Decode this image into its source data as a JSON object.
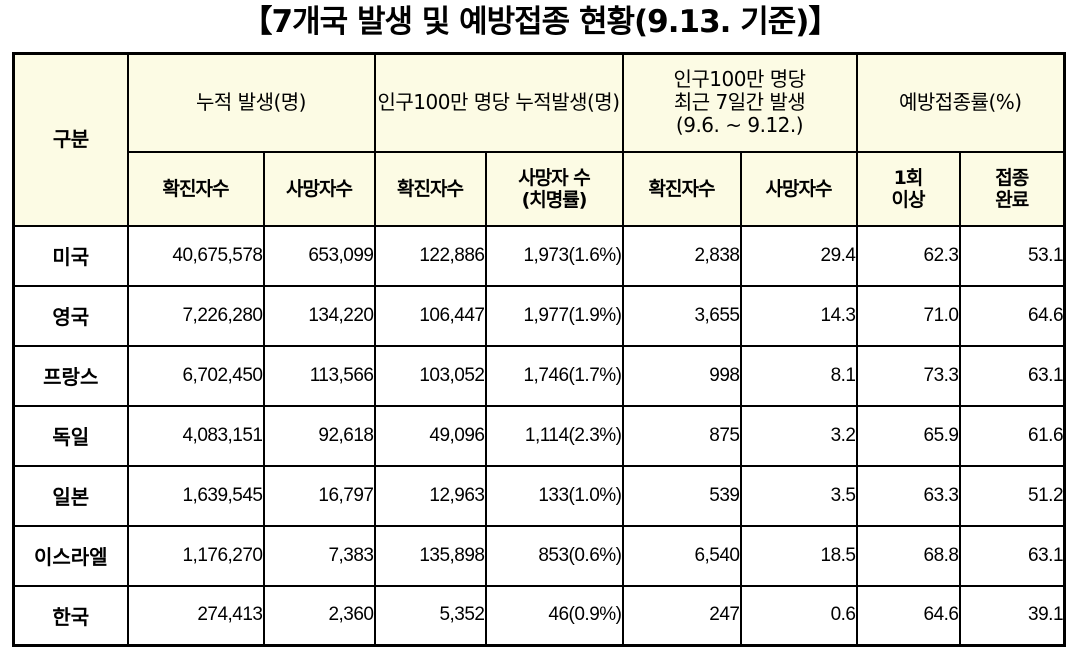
{
  "title": "【7개국 발생 및 예방접종 현황(9.13. 기준)】",
  "header": {
    "category": "구분",
    "groups": [
      "누적 발생(명)",
      "인구100만 명당  누적발생(명)",
      "인구100만 명당\n최근 7일간 발생\n(9.6. ~ 9.12.)",
      "예방접종률(%)"
    ],
    "sub": [
      "확진자수",
      "사망자수",
      "확진자수",
      "사망자 수\n(치명률)",
      "확진자수",
      "사망자수",
      "1회\n이상",
      "접종\n완료"
    ]
  },
  "rows": [
    {
      "country": "미국",
      "values": [
        "40,675,578",
        "653,099",
        "122,886",
        "1,973(1.6%)",
        "2,838",
        "29.4",
        "62.3",
        "53.1"
      ]
    },
    {
      "country": "영국",
      "values": [
        "7,226,280",
        "134,220",
        "106,447",
        "1,977(1.9%)",
        "3,655",
        "14.3",
        "71.0",
        "64.6"
      ]
    },
    {
      "country": "프랑스",
      "values": [
        "6,702,450",
        "113,566",
        "103,052",
        "1,746(1.7%)",
        "998",
        "8.1",
        "73.3",
        "63.1"
      ]
    },
    {
      "country": "독일",
      "values": [
        "4,083,151",
        "92,618",
        "49,096",
        "1,114(2.3%)",
        "875",
        "3.2",
        "65.9",
        "61.6"
      ]
    },
    {
      "country": "일본",
      "values": [
        "1,639,545",
        "16,797",
        "12,963",
        "133(1.0%)",
        "539",
        "3.5",
        "63.3",
        "51.2"
      ]
    },
    {
      "country": "이스라엘",
      "values": [
        "1,176,270",
        "7,383",
        "135,898",
        "853(0.6%)",
        "6,540",
        "18.5",
        "68.8",
        "63.1"
      ]
    },
    {
      "country": "한국",
      "values": [
        "274,413",
        "2,360",
        "5,352",
        "46(0.9%)",
        "247",
        "0.6",
        "64.6",
        "39.1"
      ]
    }
  ],
  "colors": {
    "header_bg": "#fcfbe4",
    "border": "#000000"
  }
}
